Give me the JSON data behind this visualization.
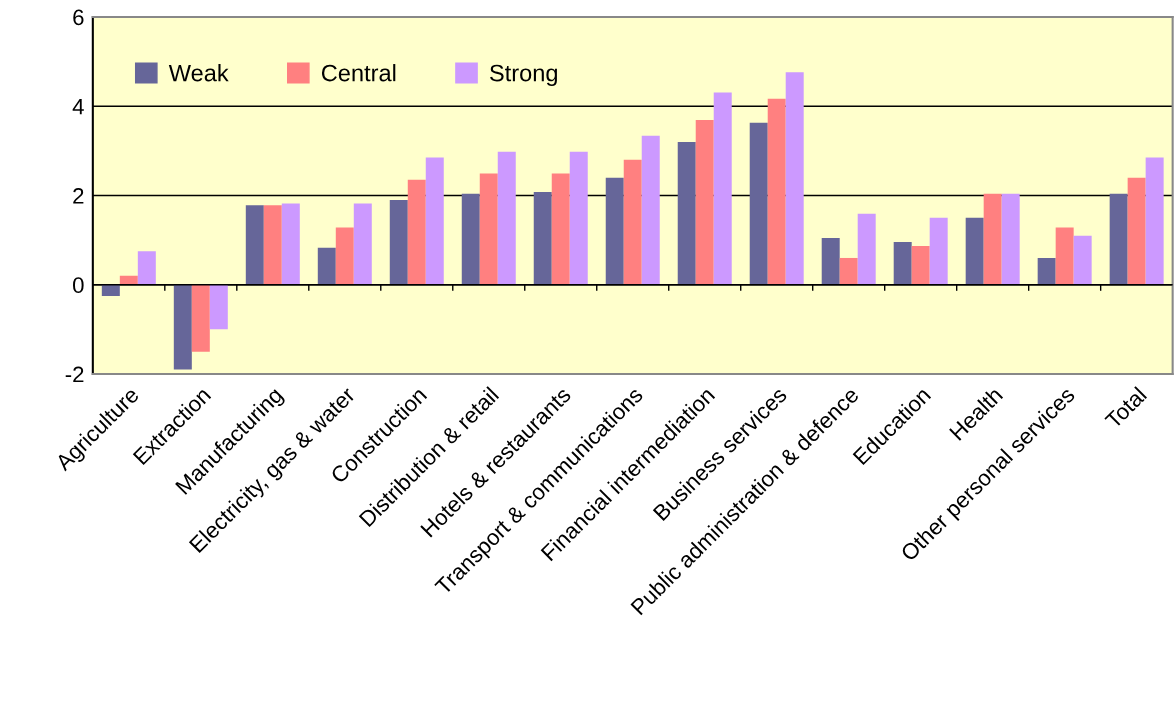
{
  "chart_data": {
    "type": "bar",
    "categories": [
      "Agriculture",
      "Extraction",
      "Manufacturing",
      "Electricity, gas & water",
      "Construction",
      "Distribution & retail",
      "Hotels & restaurants",
      "Transport & communications",
      "Financial intermediation",
      "Business services",
      "Public administration & defence",
      "Education",
      "Health",
      "Other personal services",
      "Total"
    ],
    "series": [
      {
        "name": "Weak",
        "color": "#666699",
        "values": [
          -0.25,
          -1.9,
          1.78,
          0.83,
          1.9,
          2.04,
          2.08,
          2.4,
          3.2,
          3.63,
          1.05,
          0.96,
          1.5,
          0.6,
          2.04
        ]
      },
      {
        "name": "Central",
        "color": "#ff8080",
        "values": [
          0.2,
          -1.5,
          1.78,
          1.28,
          2.35,
          2.49,
          2.49,
          2.8,
          3.69,
          4.17,
          0.6,
          0.87,
          2.04,
          1.28,
          2.4
        ]
      },
      {
        "name": "Strong",
        "color": "#cc99ff",
        "values": [
          0.75,
          -1.0,
          1.82,
          1.82,
          2.85,
          2.98,
          2.98,
          3.34,
          4.31,
          4.76,
          1.59,
          1.5,
          2.04,
          1.1,
          2.85
        ]
      }
    ],
    "ylim": [
      -2,
      6
    ],
    "yticks": [
      {
        "value": -2,
        "label": "-2"
      },
      0,
      2,
      4,
      6
    ],
    "grid": "y",
    "legend": "top left"
  }
}
